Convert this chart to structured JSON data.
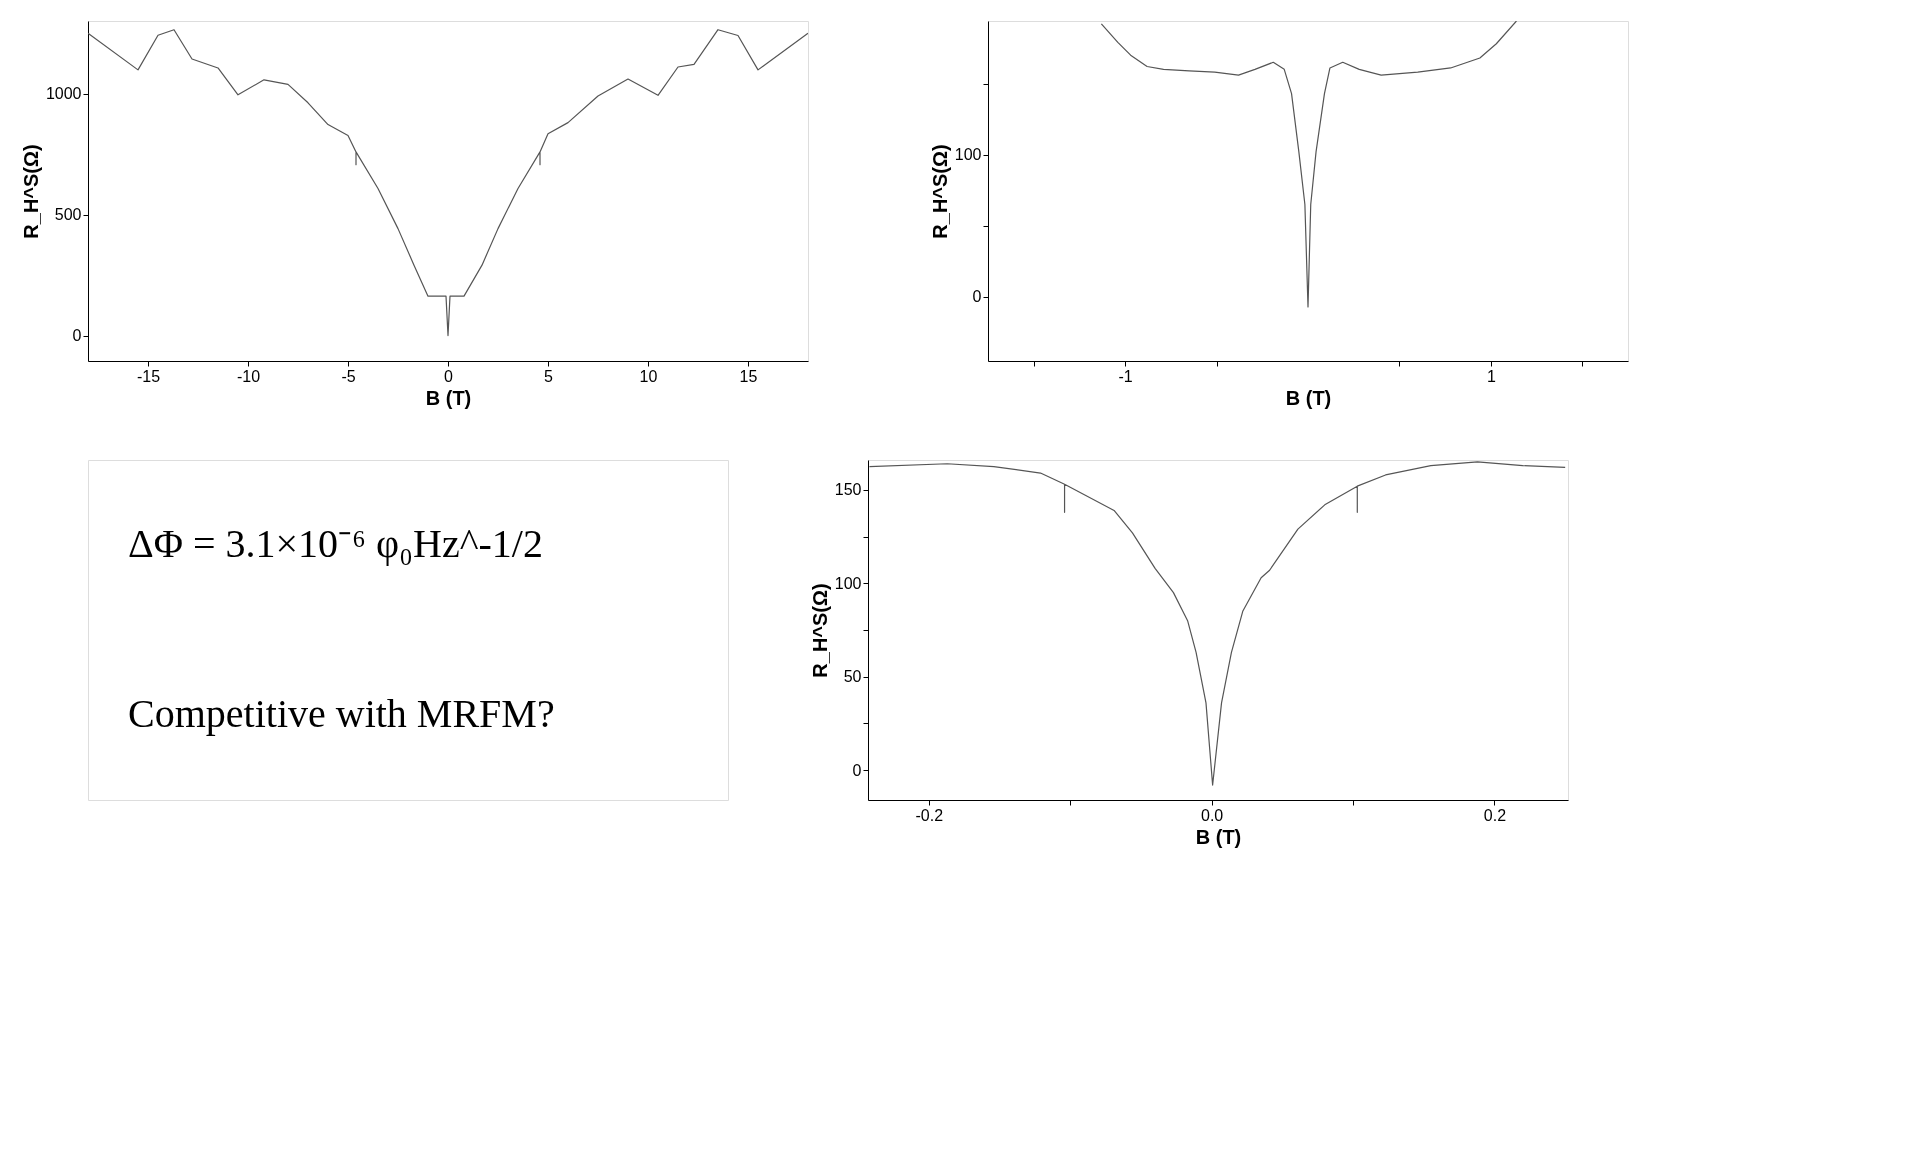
{
  "chart_data": [
    {
      "type": "line",
      "xlabel": "B (T)",
      "ylabel": "R_H^S(Ω)",
      "xlim": [
        -18,
        18
      ],
      "ylim": [
        -105,
        1300
      ],
      "xticks": [
        -15,
        -10,
        -5,
        0,
        5,
        10,
        15
      ],
      "yticks": [
        0,
        500,
        1000
      ],
      "series": [
        {
          "color": "#555555",
          "x": [
            -18,
            -15.5,
            -14.5,
            -13.7,
            -12.8,
            -11.5,
            -10.5,
            -9.2,
            -8,
            -7,
            -6,
            -5,
            -4.6,
            -4.6,
            -4.6,
            -3.5,
            -2.5,
            -1.7,
            -1,
            -0.1,
            0,
            0.1,
            0.8,
            1.7,
            2.5,
            3.5,
            4.6,
            4.6,
            4.6,
            5,
            6,
            7.5,
            9,
            10.5,
            11.5,
            12.3,
            13.5,
            14.5,
            15.5,
            18
          ],
          "values": [
            1249,
            1098,
            1241,
            1264,
            1143,
            1106,
            995,
            1057,
            1038,
            962,
            872,
            827,
            759,
            706,
            759,
            608,
            442,
            291,
            163,
            163,
            0,
            163,
            163,
            291,
            442,
            608,
            759,
            706,
            759,
            834,
            880,
            990,
            1060,
            993,
            1110,
            1121,
            1264,
            1240,
            1098,
            1249
          ]
        }
      ]
    },
    {
      "type": "line",
      "xlabel": "B (T)",
      "ylabel": "R_H^S(Ω)",
      "xlim": [
        -1.75,
        1.75
      ],
      "ylim": [
        -45,
        194
      ],
      "xticks": [
        {
          "value": -1.5,
          "label": null
        },
        -1,
        {
          "value": -0.5,
          "label": null
        },
        {
          "value": 0.5,
          "label": null
        },
        1,
        {
          "value": 1.5,
          "label": null
        }
      ],
      "yticks": [
        0,
        {
          "value": 50,
          "label": null
        },
        100,
        {
          "value": 150,
          "label": null
        }
      ],
      "series": [
        {
          "color": "#555555",
          "x": [
            -1.13,
            -1.04,
            -0.97,
            -0.88,
            -0.79,
            -0.65,
            -0.51,
            -0.38,
            -0.29,
            -0.19,
            -0.13,
            -0.09,
            -0.05,
            -0.017,
            0,
            0.015,
            0.044,
            0.09,
            0.12,
            0.19,
            0.28,
            0.4,
            0.6,
            0.78,
            0.94,
            1.03,
            1.14
          ],
          "values": [
            192,
            179,
            170,
            162,
            160,
            159,
            158,
            156,
            160,
            165,
            160,
            143,
            102,
            65,
            -7,
            65,
            102,
            143,
            161,
            165,
            160,
            156,
            158,
            161,
            168,
            178,
            194
          ]
        }
      ]
    },
    {
      "type": "line",
      "xlabel": "B (T)",
      "ylabel": "R_H^S(Ω)",
      "xlim": [
        -0.243,
        0.252
      ],
      "ylim": [
        -16,
        166
      ],
      "xticks": [
        -0.2,
        {
          "value": -0.1,
          "label": null
        },
        {
          "value": 0,
          "label": "0.0"
        },
        {
          "value": 0.1,
          "label": null
        },
        0.2
      ],
      "yticks": [
        0,
        {
          "value": 25,
          "label": null
        },
        50,
        {
          "value": 75,
          "label": null
        },
        100,
        {
          "value": 125,
          "label": null
        },
        150
      ],
      "annotations": [
        "ΔΦ = 3.1×10⁻⁶ φ₀Hz^-1/2",
        "Competitive with MRFM?"
      ],
      "series": [
        {
          "color": "#555555",
          "x": [
            -0.242,
            -0.187,
            -0.154,
            -0.121,
            -0.104,
            -0.104,
            -0.104,
            -0.089,
            -0.069,
            -0.056,
            -0.04,
            -0.027,
            -0.017,
            -0.011,
            -0.004,
            0.0007,
            0.007,
            0.014,
            0.022,
            0.035,
            0.041,
            0.061,
            0.08,
            0.103,
            0.103,
            0.103,
            0.123,
            0.155,
            0.188,
            0.22,
            0.25
          ],
          "values": [
            162.5,
            164,
            162.5,
            159,
            153,
            138,
            153,
            147,
            139,
            127,
            108,
            95,
            80,
            63,
            36,
            -8,
            36,
            63,
            85,
            103,
            107,
            129,
            142,
            152,
            138,
            152,
            158,
            163,
            165,
            163,
            162
          ]
        }
      ]
    }
  ]
}
